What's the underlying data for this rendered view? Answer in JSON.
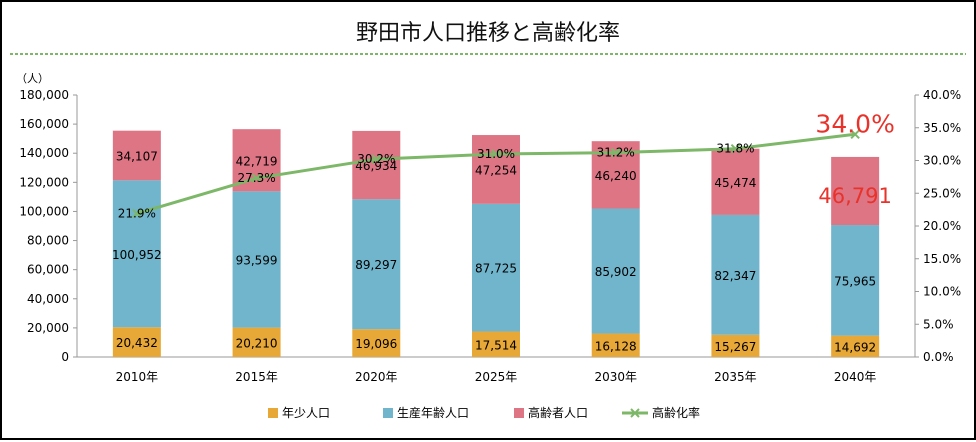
{
  "chart_data": {
    "type": "bar",
    "title": "野田市人口推移と高齢化率",
    "y_unit": "（人）",
    "categories": [
      "2010年",
      "2015年",
      "2020年",
      "2025年",
      "2030年",
      "2035年",
      "2040年"
    ],
    "y_ticks": [
      "0",
      "20,000",
      "40,000",
      "60,000",
      "80,000",
      "100,000",
      "120,000",
      "140,000",
      "160,000",
      "180,000"
    ],
    "y2_ticks": [
      "0.0%",
      "5.0%",
      "10.0%",
      "15.0%",
      "20.0%",
      "25.0%",
      "30.0%",
      "35.0%",
      "40.0%"
    ],
    "ylim": [
      0,
      180000
    ],
    "y2lim": [
      0,
      40
    ],
    "grid": false,
    "legend_position": "bottom",
    "series": [
      {
        "name": "年少人口",
        "kind": "bar",
        "color": "#E8A838",
        "values": [
          20432,
          20210,
          19096,
          17514,
          16128,
          15267,
          14692
        ],
        "labels": [
          "20,432",
          "20,210",
          "19,096",
          "17,514",
          "16,128",
          "15,267",
          "14,692"
        ]
      },
      {
        "name": "生産年齢人口",
        "kind": "bar",
        "color": "#71B5CC",
        "values": [
          100952,
          93599,
          89297,
          87725,
          85902,
          82347,
          75965
        ],
        "labels": [
          "100,952",
          "93,599",
          "89,297",
          "87,725",
          "85,902",
          "82,347",
          "75,965"
        ]
      },
      {
        "name": "高齢者人口",
        "kind": "bar",
        "color": "#DE7585",
        "values": [
          34107,
          42719,
          46934,
          47254,
          46240,
          45474,
          46791
        ],
        "labels": [
          "34,107",
          "42,719",
          "46,934",
          "47,254",
          "46,240",
          "45,474",
          "46,791"
        ]
      },
      {
        "name": "高齢化率",
        "kind": "line",
        "axis": "right",
        "color": "#7DB768",
        "values": [
          21.9,
          27.3,
          30.2,
          31.0,
          31.2,
          31.8,
          34.0
        ],
        "labels": [
          "21.9%",
          "27.3%",
          "30.2%",
          "31.0%",
          "31.2%",
          "31.8%",
          "34.0%"
        ]
      }
    ],
    "highlight_color": "#E8322A"
  }
}
